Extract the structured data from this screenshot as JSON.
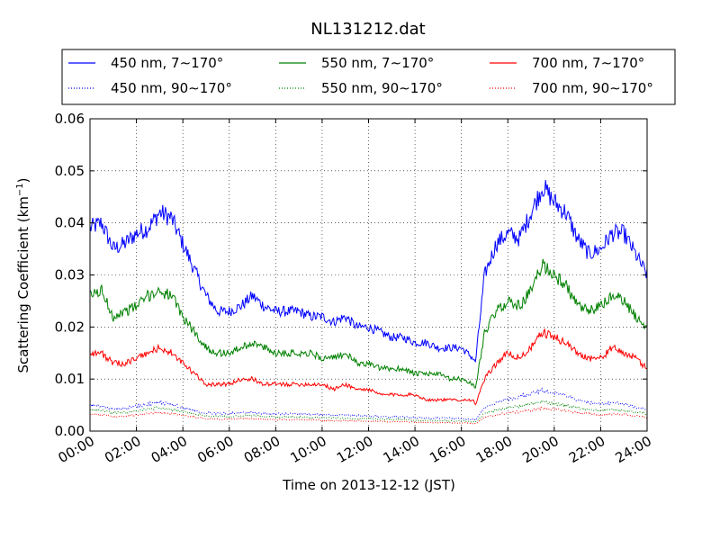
{
  "chart_data": {
    "type": "line",
    "title": "NL131212.dat",
    "xlabel": "Time on 2013-12-12 (JST)",
    "ylabel": "Scattering Coefficient (km",
    "ylabel_sup": "−1",
    "ylabel_end": ")",
    "xlim": [
      "00:00",
      "24:00"
    ],
    "ylim": [
      0,
      0.06
    ],
    "grid": true,
    "legend_position": "top",
    "x_ticks": [
      "00:00",
      "02:00",
      "04:00",
      "06:00",
      "08:00",
      "10:00",
      "12:00",
      "14:00",
      "16:00",
      "18:00",
      "20:00",
      "22:00",
      "24:00"
    ],
    "y_ticks": [
      "0.00",
      "0.01",
      "0.02",
      "0.03",
      "0.04",
      "0.05",
      "0.06"
    ],
    "x_hours": [
      0,
      0.5,
      1,
      1.5,
      2,
      2.5,
      3,
      3.5,
      4,
      4.5,
      5,
      5.5,
      6,
      6.5,
      7,
      7.5,
      8,
      8.5,
      9,
      9.5,
      10,
      10.5,
      11,
      11.5,
      12,
      12.5,
      13,
      13.5,
      14,
      14.5,
      15,
      15.5,
      16,
      16.5,
      16.6,
      17,
      17.5,
      18,
      18.5,
      19,
      19.5,
      20,
      20.5,
      21,
      21.5,
      22,
      22.5,
      23,
      23.5,
      24
    ],
    "series": [
      {
        "name": "450 nm, 7∼170°",
        "color": "#0000ff",
        "dash": "solid",
        "values": [
          0.039,
          0.04,
          0.035,
          0.036,
          0.038,
          0.039,
          0.042,
          0.041,
          0.036,
          0.031,
          0.026,
          0.023,
          0.023,
          0.024,
          0.026,
          0.024,
          0.023,
          0.023,
          0.023,
          0.022,
          0.022,
          0.021,
          0.022,
          0.02,
          0.02,
          0.019,
          0.018,
          0.018,
          0.017,
          0.017,
          0.016,
          0.016,
          0.016,
          0.014,
          0.013,
          0.03,
          0.036,
          0.038,
          0.037,
          0.042,
          0.047,
          0.044,
          0.042,
          0.037,
          0.034,
          0.035,
          0.038,
          0.038,
          0.034,
          0.03
        ]
      },
      {
        "name": "550 nm, 7∼170°",
        "color": "#008000",
        "dash": "solid",
        "values": [
          0.026,
          0.027,
          0.022,
          0.023,
          0.024,
          0.026,
          0.027,
          0.026,
          0.022,
          0.019,
          0.016,
          0.015,
          0.015,
          0.016,
          0.017,
          0.016,
          0.015,
          0.015,
          0.015,
          0.015,
          0.014,
          0.014,
          0.015,
          0.013,
          0.013,
          0.012,
          0.012,
          0.012,
          0.011,
          0.011,
          0.011,
          0.01,
          0.01,
          0.009,
          0.008,
          0.019,
          0.023,
          0.025,
          0.024,
          0.027,
          0.032,
          0.03,
          0.028,
          0.024,
          0.023,
          0.024,
          0.026,
          0.025,
          0.022,
          0.02
        ]
      },
      {
        "name": "700 nm, 7∼170°",
        "color": "#ff0000",
        "dash": "solid",
        "values": [
          0.015,
          0.015,
          0.013,
          0.013,
          0.014,
          0.015,
          0.016,
          0.015,
          0.013,
          0.011,
          0.009,
          0.009,
          0.009,
          0.01,
          0.01,
          0.009,
          0.009,
          0.009,
          0.009,
          0.009,
          0.009,
          0.008,
          0.009,
          0.008,
          0.008,
          0.007,
          0.007,
          0.007,
          0.007,
          0.006,
          0.006,
          0.006,
          0.006,
          0.006,
          0.005,
          0.01,
          0.013,
          0.015,
          0.014,
          0.016,
          0.019,
          0.018,
          0.017,
          0.015,
          0.014,
          0.014,
          0.016,
          0.015,
          0.014,
          0.012
        ]
      },
      {
        "name": "450 nm, 90∼170°",
        "color": "#0000ff",
        "dash": "dotted",
        "values": [
          0.005,
          0.0048,
          0.0042,
          0.0044,
          0.0048,
          0.0052,
          0.0055,
          0.0052,
          0.0045,
          0.004,
          0.0035,
          0.0034,
          0.0034,
          0.0035,
          0.0036,
          0.0034,
          0.0033,
          0.0033,
          0.0033,
          0.0032,
          0.0032,
          0.0031,
          0.0031,
          0.003,
          0.0029,
          0.0028,
          0.0027,
          0.0027,
          0.0026,
          0.0025,
          0.0025,
          0.0025,
          0.0024,
          0.0022,
          0.0021,
          0.0045,
          0.0055,
          0.0062,
          0.0066,
          0.0072,
          0.0078,
          0.0074,
          0.0068,
          0.006,
          0.0055,
          0.0052,
          0.0054,
          0.0052,
          0.0046,
          0.0042
        ]
      },
      {
        "name": "550 nm, 90∼170°",
        "color": "#008000",
        "dash": "dotted",
        "values": [
          0.004,
          0.004,
          0.0035,
          0.0036,
          0.0039,
          0.0042,
          0.0045,
          0.0042,
          0.0037,
          0.0033,
          0.0029,
          0.0028,
          0.0028,
          0.0029,
          0.003,
          0.0028,
          0.0027,
          0.0027,
          0.0027,
          0.0026,
          0.0026,
          0.0025,
          0.0025,
          0.0024,
          0.0024,
          0.0023,
          0.0022,
          0.0022,
          0.0021,
          0.002,
          0.002,
          0.002,
          0.0019,
          0.0018,
          0.0017,
          0.0034,
          0.004,
          0.0045,
          0.0048,
          0.0052,
          0.0056,
          0.0053,
          0.0049,
          0.0044,
          0.0041,
          0.0039,
          0.0041,
          0.004,
          0.0036,
          0.0033
        ]
      },
      {
        "name": "700 nm, 90∼170°",
        "color": "#ff0000",
        "dash": "dotted",
        "values": [
          0.0032,
          0.0032,
          0.0028,
          0.0029,
          0.0031,
          0.0034,
          0.0036,
          0.0034,
          0.003,
          0.0027,
          0.0024,
          0.0023,
          0.0023,
          0.0024,
          0.0024,
          0.0023,
          0.0022,
          0.0022,
          0.0022,
          0.0021,
          0.0021,
          0.002,
          0.002,
          0.002,
          0.0019,
          0.0019,
          0.0018,
          0.0018,
          0.0017,
          0.0017,
          0.0016,
          0.0016,
          0.0016,
          0.0015,
          0.0014,
          0.0026,
          0.0031,
          0.0035,
          0.0037,
          0.004,
          0.0044,
          0.0042,
          0.0039,
          0.0035,
          0.0033,
          0.0031,
          0.0033,
          0.0032,
          0.0029,
          0.0026
        ]
      }
    ]
  }
}
